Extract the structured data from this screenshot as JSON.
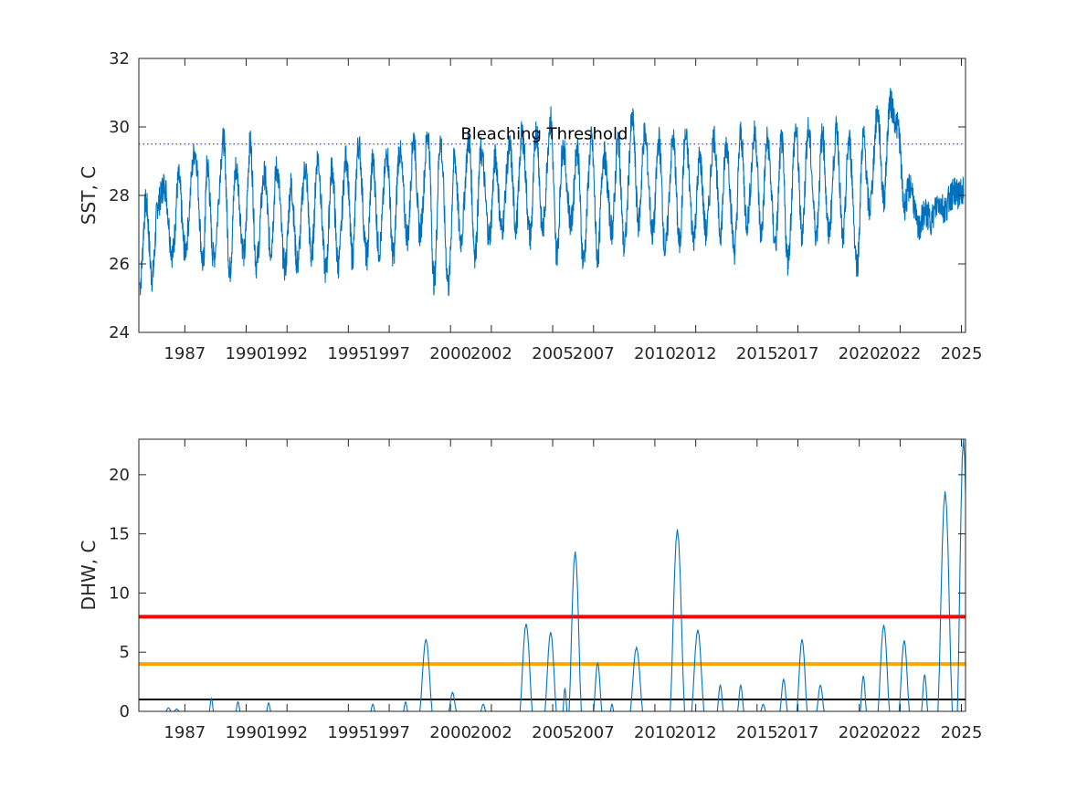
{
  "chart_data": [
    {
      "type": "line",
      "title": "",
      "xlabel": "",
      "ylabel": "SST, C",
      "xlim": [
        1984.75,
        2025.2
      ],
      "ylim": [
        24,
        32
      ],
      "x_ticks": [
        1987,
        1990,
        1992,
        1995,
        1997,
        2000,
        2002,
        2005,
        2007,
        2010,
        2012,
        2015,
        2017,
        2020,
        2022,
        2025
      ],
      "x_tick_labels": [
        "1987",
        "1990",
        "1992",
        "1995",
        "1997",
        "2000",
        "2002",
        "2005",
        "2007",
        "2010",
        "2012",
        "2015",
        "2017",
        "2020",
        "2022",
        "2025"
      ],
      "y_ticks": [
        24,
        26,
        28,
        30,
        32
      ],
      "y_tick_labels": [
        "24",
        "26",
        "28",
        "30",
        "32"
      ],
      "grid": false,
      "series": [
        {
          "name": "",
          "color": "#0072BD",
          "x": [
            1984.8,
            1985.1,
            1985.4,
            1985.7,
            1986.0,
            1986.4,
            1986.7,
            1987.0,
            1987.5,
            1987.9,
            1988.1,
            1988.4,
            1988.9,
            1989.2,
            1989.5,
            1989.9,
            1990.2,
            1990.5,
            1990.9,
            1991.2,
            1991.5,
            1991.9,
            1992.2,
            1992.5,
            1992.9,
            1993.2,
            1993.5,
            1993.9,
            1994.2,
            1994.5,
            1994.9,
            1995.2,
            1995.5,
            1995.9,
            1996.2,
            1996.5,
            1996.9,
            1997.2,
            1997.5,
            1997.9,
            1998.2,
            1998.5,
            1998.9,
            1999.2,
            1999.5,
            1999.9,
            2000.2,
            2000.5,
            2000.9,
            2001.2,
            2001.5,
            2001.9,
            2002.2,
            2002.5,
            2002.9,
            2003.2,
            2003.5,
            2003.9,
            2004.2,
            2004.5,
            2004.9,
            2005.2,
            2005.5,
            2005.9,
            2006.2,
            2006.5,
            2006.9,
            2007.2,
            2007.5,
            2007.9,
            2008.2,
            2008.5,
            2008.9,
            2009.2,
            2009.5,
            2009.9,
            2010.2,
            2010.5,
            2010.9,
            2011.2,
            2011.5,
            2011.9,
            2012.2,
            2012.5,
            2012.9,
            2013.2,
            2013.5,
            2013.9,
            2014.2,
            2014.5,
            2014.9,
            2015.2,
            2015.5,
            2015.9,
            2016.2,
            2016.5,
            2016.9,
            2017.2,
            2017.5,
            2017.9,
            2018.2,
            2018.5,
            2018.9,
            2019.2,
            2019.5,
            2019.9,
            2020.2,
            2020.5,
            2020.9,
            2021.2,
            2021.5,
            2021.9,
            2022.2,
            2022.5,
            2022.9,
            2023.2,
            2023.5,
            2023.9,
            2024.2,
            2024.5,
            2024.7,
            2024.9,
            2025.1
          ],
          "y": [
            25.4,
            27.8,
            25.6,
            27.8,
            28.3,
            26.3,
            28.5,
            26.4,
            29.3,
            26.0,
            28.9,
            26.2,
            29.6,
            25.8,
            28.8,
            26.3,
            29.5,
            26.0,
            28.6,
            26.4,
            28.8,
            25.9,
            28.3,
            26.0,
            28.8,
            26.2,
            29.1,
            25.8,
            28.8,
            26.0,
            29.1,
            26.2,
            29.5,
            26.2,
            29.0,
            26.4,
            29.2,
            26.2,
            29.3,
            26.8,
            29.7,
            26.9,
            29.8,
            25.5,
            29.6,
            25.4,
            29.1,
            26.7,
            29.6,
            26.3,
            29.3,
            26.8,
            29.1,
            27.0,
            29.4,
            27.1,
            29.8,
            26.8,
            29.9,
            27.0,
            30.2,
            26.3,
            29.4,
            27.2,
            29.4,
            26.1,
            29.6,
            26.2,
            29.2,
            27.0,
            29.6,
            26.5,
            30.2,
            27.2,
            29.8,
            26.9,
            29.6,
            26.4,
            29.6,
            26.6,
            29.7,
            26.8,
            29.1,
            26.9,
            29.7,
            26.9,
            29.5,
            26.4,
            29.8,
            27.2,
            29.8,
            26.9,
            29.6,
            26.6,
            29.6,
            26.1,
            29.9,
            26.9,
            29.9,
            26.9,
            29.8,
            26.9,
            29.9,
            26.7,
            29.6,
            26.0,
            29.7,
            27.6,
            30.4,
            27.9,
            30.7,
            30.0,
            27.7,
            28.3,
            27.0,
            27.5,
            27.3,
            27.8,
            27.6,
            28.0,
            28.1,
            28.0,
            28.2
          ]
        }
      ],
      "annotations": [
        {
          "text": "Bleaching Threshold",
          "x": 2000.5,
          "y": 29.8
        }
      ],
      "reference_lines": [
        {
          "y": 29.5,
          "style": "dotted",
          "color": "#3D3DE8"
        }
      ]
    },
    {
      "type": "line",
      "title": "",
      "xlabel": "",
      "ylabel": "DHW, C",
      "xlim": [
        1984.75,
        2025.2
      ],
      "ylim": [
        0,
        23
      ],
      "x_ticks": [
        1987,
        1990,
        1992,
        1995,
        1997,
        2000,
        2002,
        2005,
        2007,
        2010,
        2012,
        2015,
        2017,
        2020,
        2022,
        2025
      ],
      "x_tick_labels": [
        "1987",
        "1990",
        "1992",
        "1995",
        "1997",
        "2000",
        "2002",
        "2005",
        "2007",
        "2010",
        "2012",
        "2015",
        "2017",
        "2020",
        "2022",
        "2025"
      ],
      "y_ticks": [
        0,
        5,
        10,
        15,
        20
      ],
      "y_tick_labels": [
        "0",
        "5",
        "10",
        "15",
        "20"
      ],
      "grid": false,
      "series": [
        {
          "name": "",
          "color": "#0072BD",
          "points": [
            [
              1986.2,
              0.3
            ],
            [
              1986.6,
              0.2
            ],
            [
              1988.3,
              1.1
            ],
            [
              1989.6,
              0.8
            ],
            [
              1991.1,
              0.7
            ],
            [
              1996.2,
              0.6
            ],
            [
              1997.8,
              0.8
            ],
            [
              1998.8,
              6.1
            ],
            [
              2000.1,
              1.6
            ],
            [
              2001.6,
              0.6
            ],
            [
              2003.7,
              7.4
            ],
            [
              2004.9,
              6.7
            ],
            [
              2005.6,
              1.9
            ],
            [
              2006.1,
              13.5
            ],
            [
              2007.2,
              4.1
            ],
            [
              2007.9,
              0.6
            ],
            [
              2009.1,
              5.4
            ],
            [
              2011.1,
              15.4
            ],
            [
              2012.1,
              6.9
            ],
            [
              2013.2,
              2.2
            ],
            [
              2014.2,
              2.2
            ],
            [
              2015.3,
              0.6
            ],
            [
              2016.3,
              2.7
            ],
            [
              2017.2,
              6.1
            ],
            [
              2018.1,
              2.2
            ],
            [
              2020.2,
              3.0
            ],
            [
              2021.2,
              7.3
            ],
            [
              2022.2,
              6.0
            ],
            [
              2023.2,
              3.1
            ],
            [
              2024.2,
              18.6
            ],
            [
              2025.1,
              23.0
            ]
          ],
          "event_halfwidth": [
            0.12,
            0.12,
            0.1,
            0.1,
            0.1,
            0.1,
            0.1,
            0.3,
            0.18,
            0.12,
            0.3,
            0.28,
            0.1,
            0.3,
            0.2,
            0.08,
            0.3,
            0.35,
            0.3,
            0.15,
            0.15,
            0.12,
            0.18,
            0.25,
            0.18,
            0.15,
            0.28,
            0.25,
            0.15,
            0.35,
            0.3
          ]
        }
      ],
      "reference_lines": [
        {
          "y": 8,
          "color": "#FF0000",
          "style": "solid"
        },
        {
          "y": 4,
          "color": "#FFA500",
          "style": "solid"
        },
        {
          "y": 1,
          "color": "#000000",
          "style": "solid"
        }
      ]
    }
  ]
}
